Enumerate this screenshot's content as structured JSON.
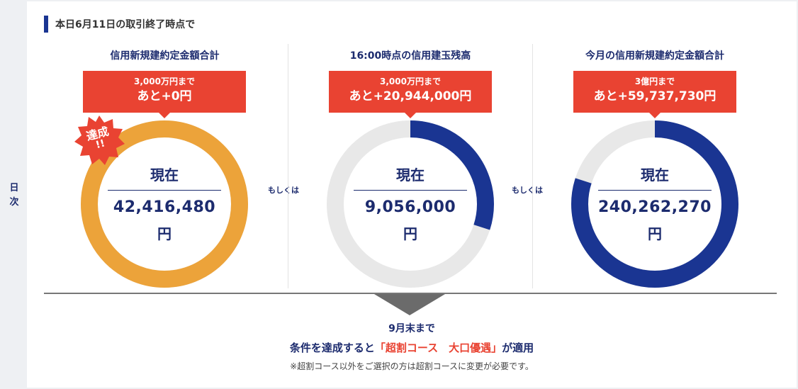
{
  "side": {
    "label_1": "日",
    "label_2": "次"
  },
  "heading": "本日6月11日の取引終了時点で",
  "columns": [
    {
      "title": "信用新規建約定金額合計",
      "target": "3,000万円まで",
      "remaining": "あと+0円",
      "current_label": "現在",
      "current_value": "42,416,480",
      "unit": "円",
      "progress": 1.0,
      "ring_color": "#eca33a",
      "achieved_badge": {
        "line1": "達成",
        "line2": "!!"
      }
    },
    {
      "title": "16:00時点の信用建玉残高",
      "target": "3,000万円まで",
      "remaining": "あと+20,944,000円",
      "current_label": "現在",
      "current_value": "9,056,000",
      "unit": "円",
      "progress": 0.3,
      "ring_color": "#1a3592"
    },
    {
      "title": "今月の信用新規建約定金額合計",
      "target": "3億円まで",
      "remaining": "あと+59,737,730円",
      "current_label": "現在",
      "current_value": "240,262,270",
      "unit": "円",
      "progress": 0.8,
      "ring_color": "#1a3592"
    }
  ],
  "or_text": "もしくは",
  "bottom": {
    "deadline": "9月末まで",
    "main_prefix": "条件を達成すると",
    "main_highlight": "「超割コース　大口優遇」",
    "main_suffix": "が適用",
    "note": "※超割コース以外をご選択の方は超割コースに変更が必要です。"
  },
  "colors": {
    "accent_red": "#e94332",
    "navy": "#1a3592",
    "ring_track": "#e8e8e8",
    "ring_gold": "#eca33a"
  }
}
